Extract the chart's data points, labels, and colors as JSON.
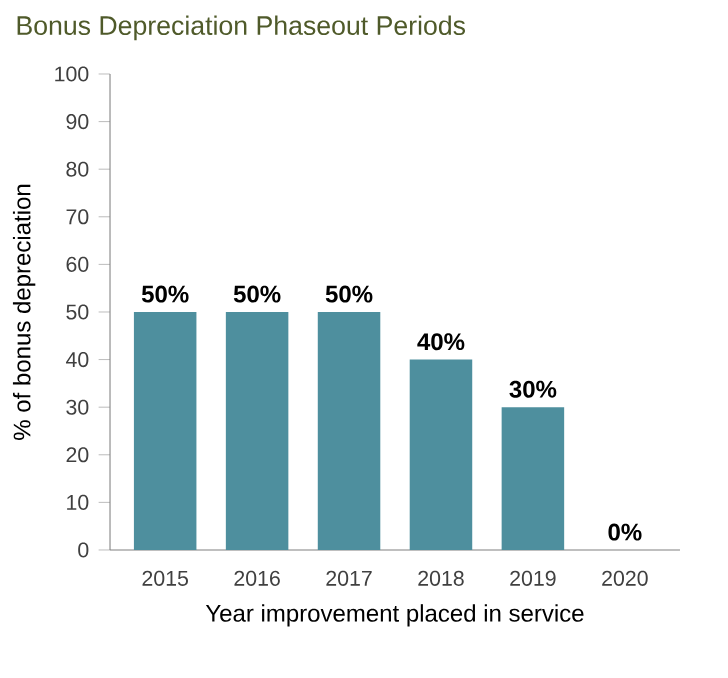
{
  "chart_data": {
    "type": "bar",
    "title": "Bonus Depreciation Phaseout Periods",
    "xlabel": "Year improvement placed in service",
    "ylabel": "% of bonus depreciation",
    "categories": [
      "2015",
      "2016",
      "2017",
      "2018",
      "2019",
      "2020"
    ],
    "values": [
      50,
      50,
      50,
      40,
      30,
      0
    ],
    "value_labels": [
      "50%",
      "50%",
      "50%",
      "40%",
      "30%",
      "0%"
    ],
    "color": "#4e8f9e",
    "ylim": [
      0,
      100
    ],
    "yticks": [
      0,
      10,
      20,
      30,
      40,
      50,
      60,
      70,
      80,
      90,
      100
    ],
    "grid": false
  }
}
